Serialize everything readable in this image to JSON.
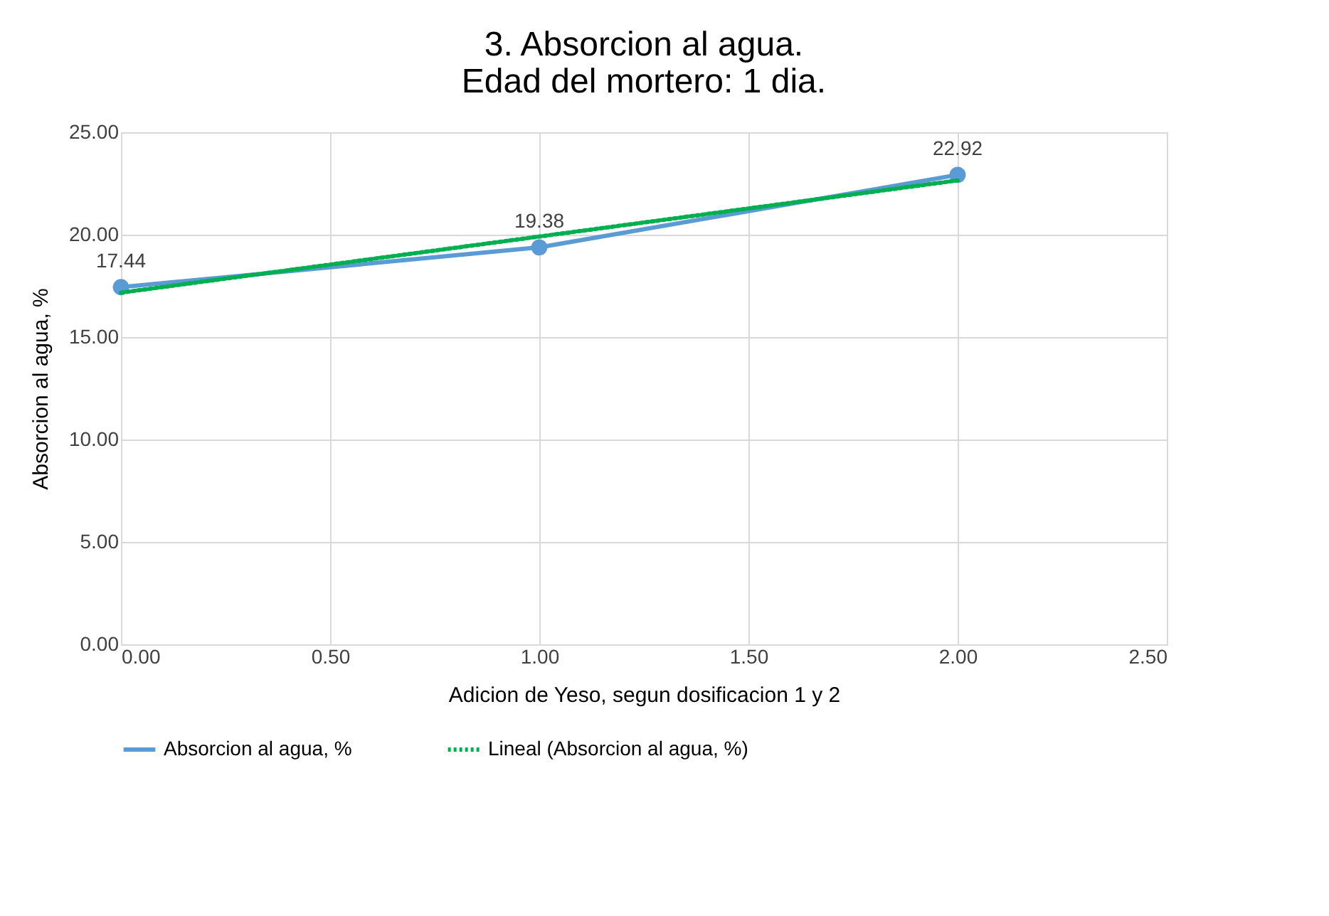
{
  "chart_data": {
    "type": "line",
    "title": [
      "3. Absorcion al agua.",
      "Edad del mortero: 1 dia."
    ],
    "xlabel": "Adicion de Yeso, segun dosificacion 1 y 2",
    "ylabel": "Absorcion al agua, %",
    "x": [
      0,
      1,
      2
    ],
    "series": [
      {
        "name": "Absorcion al agua, %",
        "color": "#5b9bd5",
        "values": [
          17.44,
          19.38,
          22.92
        ],
        "marker": "circle",
        "line_style": "solid",
        "data_labels": true
      },
      {
        "name": "Lineal (Absorcion al agua, %)",
        "type": "line",
        "color": "#00b050",
        "values": [
          17.17,
          19.91,
          22.65
        ],
        "marker": "none",
        "line_style": "dotted"
      }
    ],
    "xlim": [
      0,
      2.5
    ],
    "xticks": [
      {
        "value": 0,
        "label": "0.00"
      },
      {
        "value": 0.5,
        "label": "0.50"
      },
      {
        "value": 1,
        "label": "1.00"
      },
      {
        "value": 1.5,
        "label": "1.50"
      },
      {
        "value": 2,
        "label": "2.00"
      },
      {
        "value": 2.5,
        "label": "2.50"
      }
    ],
    "ylim": [
      0,
      25
    ],
    "yticks": [
      {
        "value": 0,
        "label": "0.00"
      },
      {
        "value": 5,
        "label": "5.00"
      },
      {
        "value": 10,
        "label": "10.00"
      },
      {
        "value": 15,
        "label": "15.00"
      },
      {
        "value": 20,
        "label": "20.00"
      },
      {
        "value": 25,
        "label": "25.00"
      }
    ],
    "grid": true,
    "legend": "bottom"
  }
}
